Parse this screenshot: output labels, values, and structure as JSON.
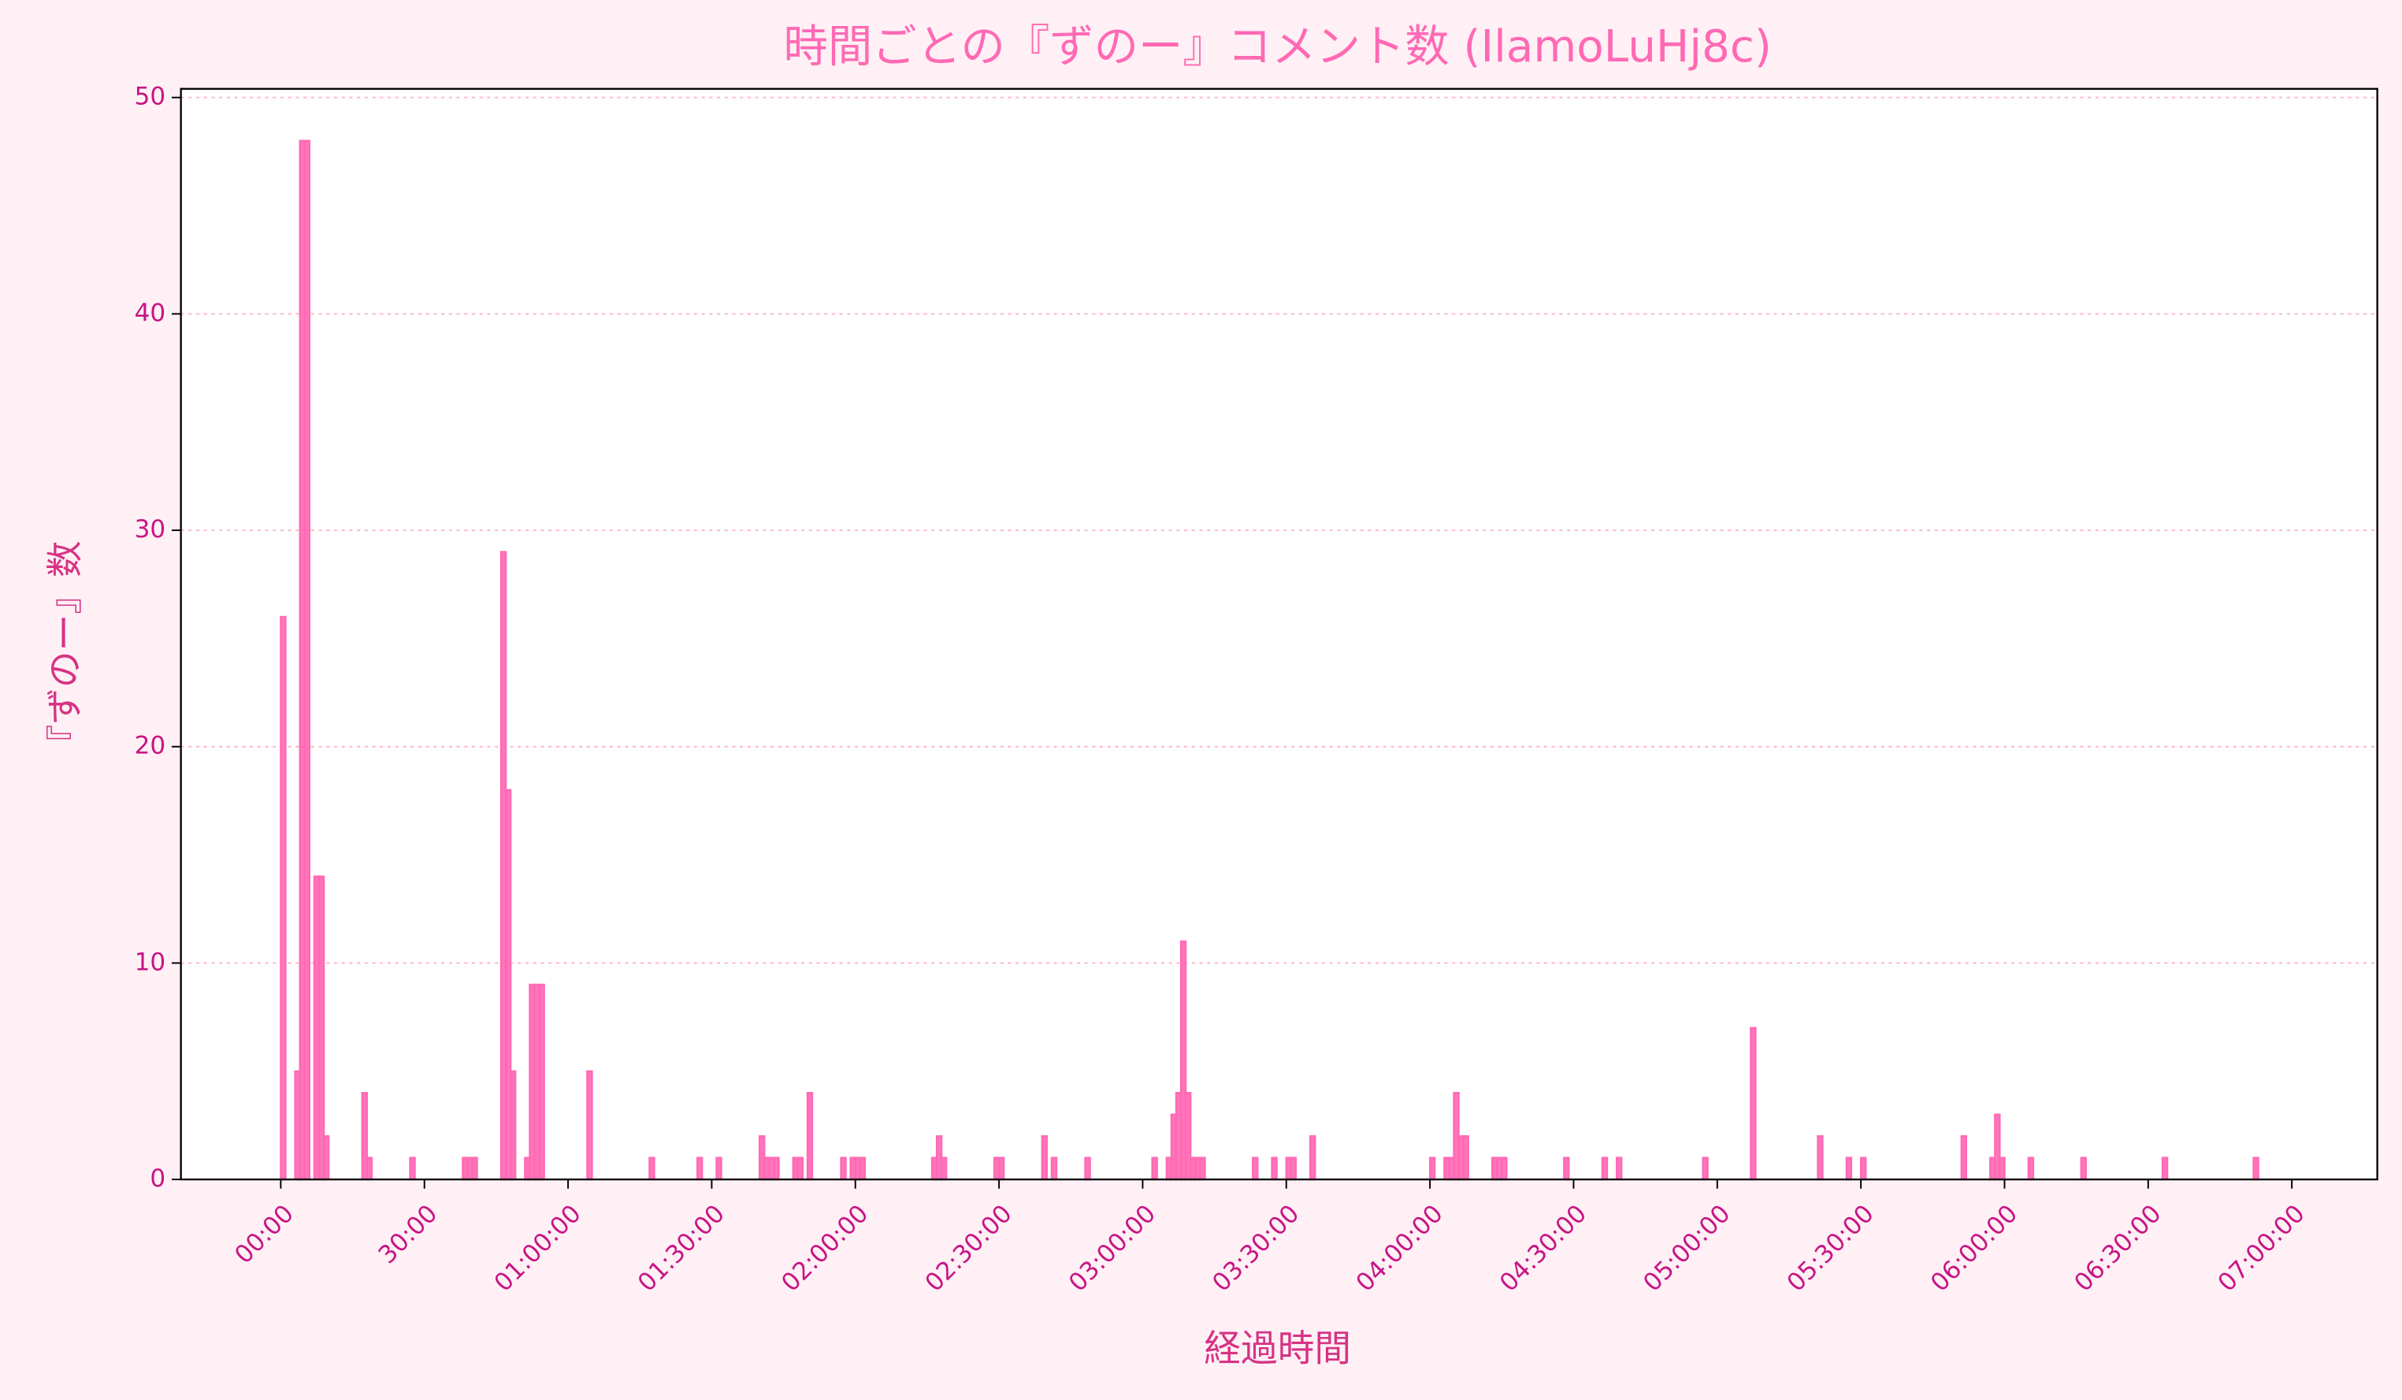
{
  "chart_data": {
    "type": "histogram",
    "title": "時間ごとの『ずのー』コメント数 (IlamoLuHj8c)",
    "x_label": "経過時間",
    "y_label": "『ずのー』数",
    "color": "#ff69b4",
    "grid": true,
    "xlim": [
      -20.85,
      437.85
    ],
    "ylim": [
      0,
      50.4
    ],
    "yticks": [
      0,
      10,
      20,
      30,
      40,
      50
    ],
    "xticks": [
      {
        "value": 0,
        "label": "00:00"
      },
      {
        "value": 30,
        "label": "30:00"
      },
      {
        "value": 60,
        "label": "01:00:00"
      },
      {
        "value": 90,
        "label": "01:30:00"
      },
      {
        "value": 120,
        "label": "02:00:00"
      },
      {
        "value": 150,
        "label": "02:30:00"
      },
      {
        "value": 180,
        "label": "03:00:00"
      },
      {
        "value": 210,
        "label": "03:30:00"
      },
      {
        "value": 240,
        "label": "04:00:00"
      },
      {
        "value": 270,
        "label": "04:30:00"
      },
      {
        "value": 300,
        "label": "05:00:00"
      },
      {
        "value": 330,
        "label": "05:30:00"
      },
      {
        "value": 360,
        "label": "06:00:00"
      },
      {
        "value": 390,
        "label": "06:30:00"
      },
      {
        "value": 420,
        "label": "07:00:00"
      }
    ],
    "bins": [
      0,
      1,
      2,
      3,
      4,
      5,
      6,
      7,
      8,
      9,
      10,
      11,
      12,
      13,
      14,
      15,
      16,
      17,
      18,
      19,
      20,
      21,
      22,
      23,
      24,
      25,
      26,
      27,
      28,
      29,
      30,
      31,
      32,
      33,
      34,
      35,
      36,
      37,
      38,
      39,
      40,
      41,
      42,
      43,
      44,
      45,
      46,
      47,
      48,
      49,
      50,
      51,
      52,
      53,
      54,
      55,
      56,
      57,
      58,
      59,
      60,
      61,
      62,
      63,
      64,
      65,
      66,
      67,
      68,
      69,
      70,
      71,
      72,
      73,
      74,
      75,
      76,
      77,
      78,
      79,
      80,
      81,
      82,
      83,
      84,
      85,
      86,
      87,
      88,
      89,
      90,
      91,
      92,
      93,
      94,
      95,
      96,
      97,
      98,
      99,
      100,
      101,
      102,
      103,
      104,
      105,
      106,
      107,
      108,
      109,
      110,
      111,
      112,
      113,
      114,
      115,
      116,
      117,
      118,
      119,
      120,
      121,
      122,
      123,
      124,
      125,
      126,
      127,
      128,
      129,
      130,
      131,
      132,
      133,
      134,
      135,
      136,
      137,
      138,
      139,
      140,
      141,
      142,
      143,
      144,
      145,
      146,
      147,
      148,
      149,
      150,
      151,
      152,
      153,
      154,
      155,
      156,
      157,
      158,
      159,
      160,
      161,
      162,
      163,
      164,
      165,
      166,
      167,
      168,
      169,
      170,
      171,
      172,
      173,
      174,
      175,
      176,
      177,
      178,
      179,
      180,
      181,
      182,
      183,
      184,
      185,
      186,
      187,
      188,
      189,
      190,
      191,
      192,
      193,
      194,
      195,
      196,
      197,
      198,
      199,
      200,
      201,
      202,
      203,
      204,
      205,
      206,
      207,
      208,
      209,
      210,
      211,
      212,
      213,
      214,
      215,
      216,
      217,
      218,
      219,
      220,
      221,
      222,
      223,
      224,
      225,
      226,
      227,
      228,
      229,
      230,
      231,
      232,
      233,
      234,
      235,
      236,
      237,
      238,
      239,
      240,
      241,
      242,
      243,
      244,
      245,
      246,
      247,
      248,
      249,
      250,
      251,
      252,
      253,
      254,
      255,
      256,
      257,
      258,
      259,
      260,
      261,
      262,
      263,
      264,
      265,
      266,
      267,
      268,
      269,
      270,
      271,
      272,
      273,
      274,
      275,
      276,
      277,
      278,
      279,
      280,
      281,
      282,
      283,
      284,
      285,
      286,
      287,
      288,
      289,
      290,
      291,
      292,
      293,
      294,
      295,
      296,
      297,
      298,
      299,
      300,
      301,
      302,
      303,
      304,
      305,
      306,
      307,
      308,
      309,
      310,
      311,
      312,
      313,
      314,
      315,
      316,
      317,
      318,
      319,
      320,
      321,
      322,
      323,
      324,
      325,
      326,
      327,
      328,
      329,
      330,
      331,
      332,
      333,
      334,
      335,
      336,
      337,
      338,
      339,
      340,
      341,
      342,
      343,
      344,
      345,
      346,
      347,
      348,
      349,
      350,
      351,
      352,
      353,
      354,
      355,
      356,
      357,
      358,
      359,
      360,
      361,
      362,
      363,
      364,
      365,
      366,
      367,
      368,
      369,
      370,
      371,
      372,
      373,
      374,
      375,
      376,
      377,
      378,
      379,
      380,
      381,
      382,
      383,
      384,
      385,
      386,
      387,
      388,
      389,
      390,
      391,
      392,
      393,
      394,
      395,
      396,
      397,
      398,
      399,
      400,
      401,
      402,
      403,
      404,
      405,
      406,
      407,
      408,
      409,
      410,
      411,
      412,
      413,
      414,
      415,
      416,
      417
    ],
    "values": [
      26,
      0,
      0,
      5,
      48,
      48,
      0,
      14,
      14,
      2,
      0,
      0,
      0,
      0,
      0,
      0,
      0,
      4,
      1,
      0,
      0,
      0,
      0,
      0,
      0,
      0,
      0,
      1,
      0,
      0,
      0,
      0,
      0,
      0,
      0,
      0,
      0,
      0,
      1,
      1,
      1,
      0,
      0,
      0,
      0,
      0,
      29,
      18,
      5,
      0,
      0,
      1,
      9,
      9,
      9,
      0,
      0,
      0,
      0,
      0,
      0,
      0,
      0,
      0,
      5,
      0,
      0,
      0,
      0,
      0,
      0,
      0,
      0,
      0,
      0,
      0,
      0,
      1,
      0,
      0,
      0,
      0,
      0,
      0,
      0,
      0,
      0,
      1,
      0,
      0,
      0,
      1,
      0,
      0,
      0,
      0,
      0,
      0,
      0,
      0,
      2,
      1,
      1,
      1,
      0,
      0,
      0,
      1,
      1,
      0,
      4,
      0,
      0,
      0,
      0,
      0,
      0,
      1,
      0,
      1,
      1,
      1,
      0,
      0,
      0,
      0,
      0,
      0,
      0,
      0,
      0,
      0,
      0,
      0,
      0,
      0,
      1,
      2,
      1,
      0,
      0,
      0,
      0,
      0,
      0,
      0,
      0,
      0,
      0,
      1,
      1,
      0,
      0,
      0,
      0,
      0,
      0,
      0,
      0,
      2,
      0,
      1,
      0,
      0,
      0,
      0,
      0,
      0,
      1,
      0,
      0,
      0,
      0,
      0,
      0,
      0,
      0,
      0,
      0,
      0,
      0,
      0,
      1,
      0,
      0,
      1,
      3,
      4,
      11,
      4,
      1,
      1,
      1,
      0,
      0,
      0,
      0,
      0,
      0,
      0,
      0,
      0,
      0,
      1,
      0,
      0,
      0,
      1,
      0,
      0,
      1,
      1,
      0,
      0,
      0,
      2,
      0,
      0,
      0,
      0,
      0,
      0,
      0,
      0,
      0,
      0,
      0,
      0,
      0,
      0,
      0,
      0,
      0,
      0,
      0,
      0,
      0,
      0,
      0,
      0,
      1,
      0,
      0,
      1,
      1,
      4,
      2,
      2,
      0,
      0,
      0,
      0,
      0,
      1,
      1,
      1,
      0,
      0,
      0,
      0,
      0,
      0,
      0,
      0,
      0,
      0,
      0,
      0,
      1,
      0,
      0,
      0,
      0,
      0,
      0,
      0,
      1,
      0,
      0,
      1,
      0,
      0,
      0,
      0,
      0,
      0,
      0,
      0,
      0,
      0,
      0,
      0,
      0,
      0,
      0,
      0,
      0,
      1,
      0,
      0,
      0,
      0,
      0,
      0,
      0,
      0,
      0,
      7,
      0,
      0,
      0,
      0,
      0,
      0,
      0,
      0,
      0,
      0,
      0,
      0,
      0,
      2,
      0,
      0,
      0,
      0,
      0,
      1,
      0,
      0,
      1,
      0,
      0,
      0,
      0,
      0,
      0,
      0,
      0,
      0,
      0,
      0,
      0,
      0,
      0,
      0,
      0,
      0,
      0,
      0,
      0,
      2,
      0,
      0,
      0,
      0,
      0,
      1,
      3,
      1,
      0,
      0,
      0,
      0,
      0,
      1,
      0,
      0,
      0,
      0,
      0,
      0,
      0,
      0,
      0,
      0,
      1,
      0,
      0,
      0,
      0,
      0,
      0,
      0,
      0,
      0,
      0,
      0,
      0,
      0,
      0,
      0,
      0,
      1,
      0,
      0,
      0,
      0,
      0,
      0,
      0,
      0,
      0,
      0,
      0,
      0,
      0,
      0,
      0,
      0,
      0,
      0,
      1,
      0,
      0,
      0,
      0
    ]
  }
}
